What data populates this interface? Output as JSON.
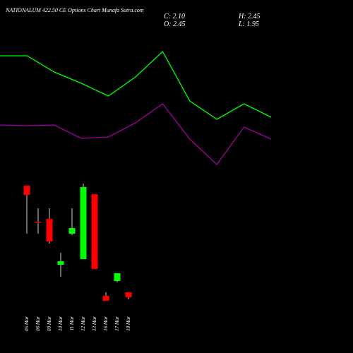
{
  "chart_data": [
    {
      "type": "line",
      "title": "NATIONALUM 422.50  CE Options  Chart Munafa Sutra.com",
      "annotations": [
        "C: 2.10",
        "H: 2.45",
        "O: 2.45",
        "L: 1.95"
      ],
      "categories": [
        null,
        null,
        null,
        null,
        null,
        null,
        null,
        null,
        null,
        null,
        null
      ],
      "ylim": [
        -1.85,
        23.15
      ],
      "series": [
        {
          "color": "#00ff00",
          "values": [
            19.2,
            19.2,
            18.05,
            17.25,
            16.35,
            17.7,
            19.5,
            16.0,
            14.7,
            15.8,
            14.85
          ]
        },
        {
          "color": "#a000a0",
          "values": [
            14.3,
            14.25,
            14.3,
            13.35,
            13.45,
            14.45,
            15.8,
            13.3,
            11.5,
            14.15,
            13.3
          ]
        }
      ]
    },
    {
      "type": "candlestick",
      "categories": [
        "05 Mar",
        "06 Mar",
        "09 Mar",
        "10 Mar",
        "11 Mar",
        "12 Mar",
        "13 Mar",
        "16 Mar",
        "17 Mar",
        "18 Mar"
      ],
      "open": [
        10.0,
        7.45,
        7.65,
        4.4,
        6.6,
        4.8,
        9.4,
        2.2,
        3.25,
        2.45
      ],
      "high": [
        10.0,
        8.4,
        8.4,
        5.25,
        8.4,
        10.15,
        9.4,
        2.45,
        3.8,
        2.45
      ],
      "low": [
        6.6,
        6.6,
        5.9,
        3.55,
        6.5,
        4.8,
        4.1,
        1.85,
        3.15,
        1.95
      ],
      "close": [
        9.35,
        7.4,
        6.05,
        4.65,
        7.0,
        9.9,
        4.1,
        1.85,
        3.8,
        2.1
      ],
      "up_color": "#00ff00",
      "down_color": "#ff0000",
      "wick_color": "#cccccc",
      "ylim": [
        -1.85,
        23.15
      ]
    }
  ]
}
